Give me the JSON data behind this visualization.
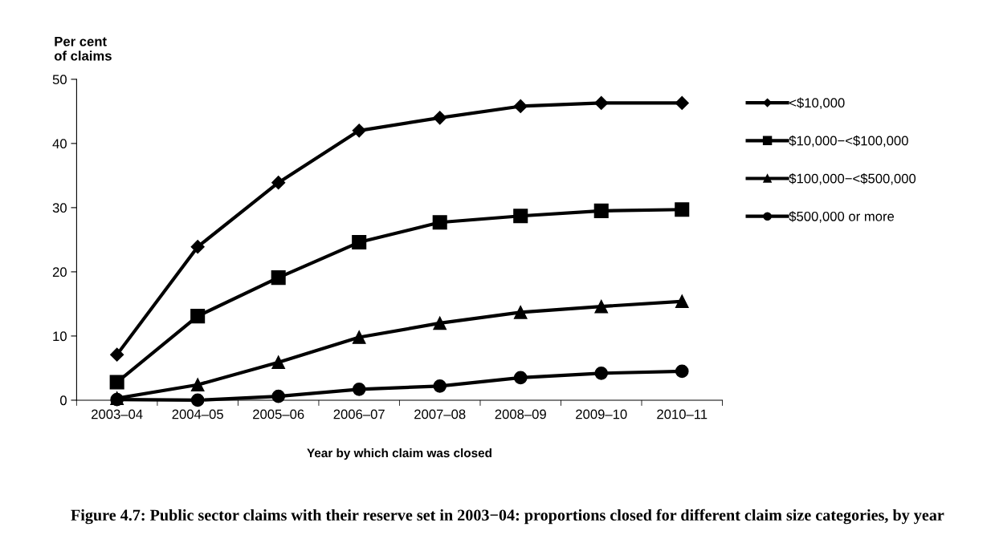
{
  "chart_data": {
    "type": "line",
    "title": "Figure 4.7: Public sector claims with their reserve set in 2003−04: proportions closed for different claim size categories, by year",
    "xlabel": "Year by which claim was closed",
    "ylabel": "Per cent\nof claims",
    "categories": [
      "2003–04",
      "2004–05",
      "2005–06",
      "2006–07",
      "2007–08",
      "2008–09",
      "2009–10",
      "2010–11"
    ],
    "series": [
      {
        "name": "<$10,000",
        "color": "#000000",
        "marker": "diamond",
        "values": [
          7.1,
          23.9,
          33.9,
          42.0,
          44.0,
          45.8,
          46.3,
          46.3
        ]
      },
      {
        "name": "$10,000−<$100,000",
        "color": "#000000",
        "marker": "square",
        "values": [
          2.8,
          13.1,
          19.1,
          24.6,
          27.7,
          28.7,
          29.5,
          29.7
        ]
      },
      {
        "name": "$100,000−<$500,000",
        "color": "#000000",
        "marker": "triangle",
        "values": [
          0.3,
          2.4,
          5.9,
          9.8,
          12.0,
          13.7,
          14.6,
          15.4
        ]
      },
      {
        "name": "$500,000 or more",
        "color": "#000000",
        "marker": "circle",
        "values": [
          0.1,
          0.0,
          0.6,
          1.7,
          2.2,
          3.5,
          4.2,
          4.5
        ]
      }
    ],
    "ylim": [
      0,
      50
    ],
    "yticks": [
      0,
      10,
      20,
      30,
      40,
      50
    ],
    "grid": false,
    "legend": "right",
    "line_style": "solid"
  }
}
